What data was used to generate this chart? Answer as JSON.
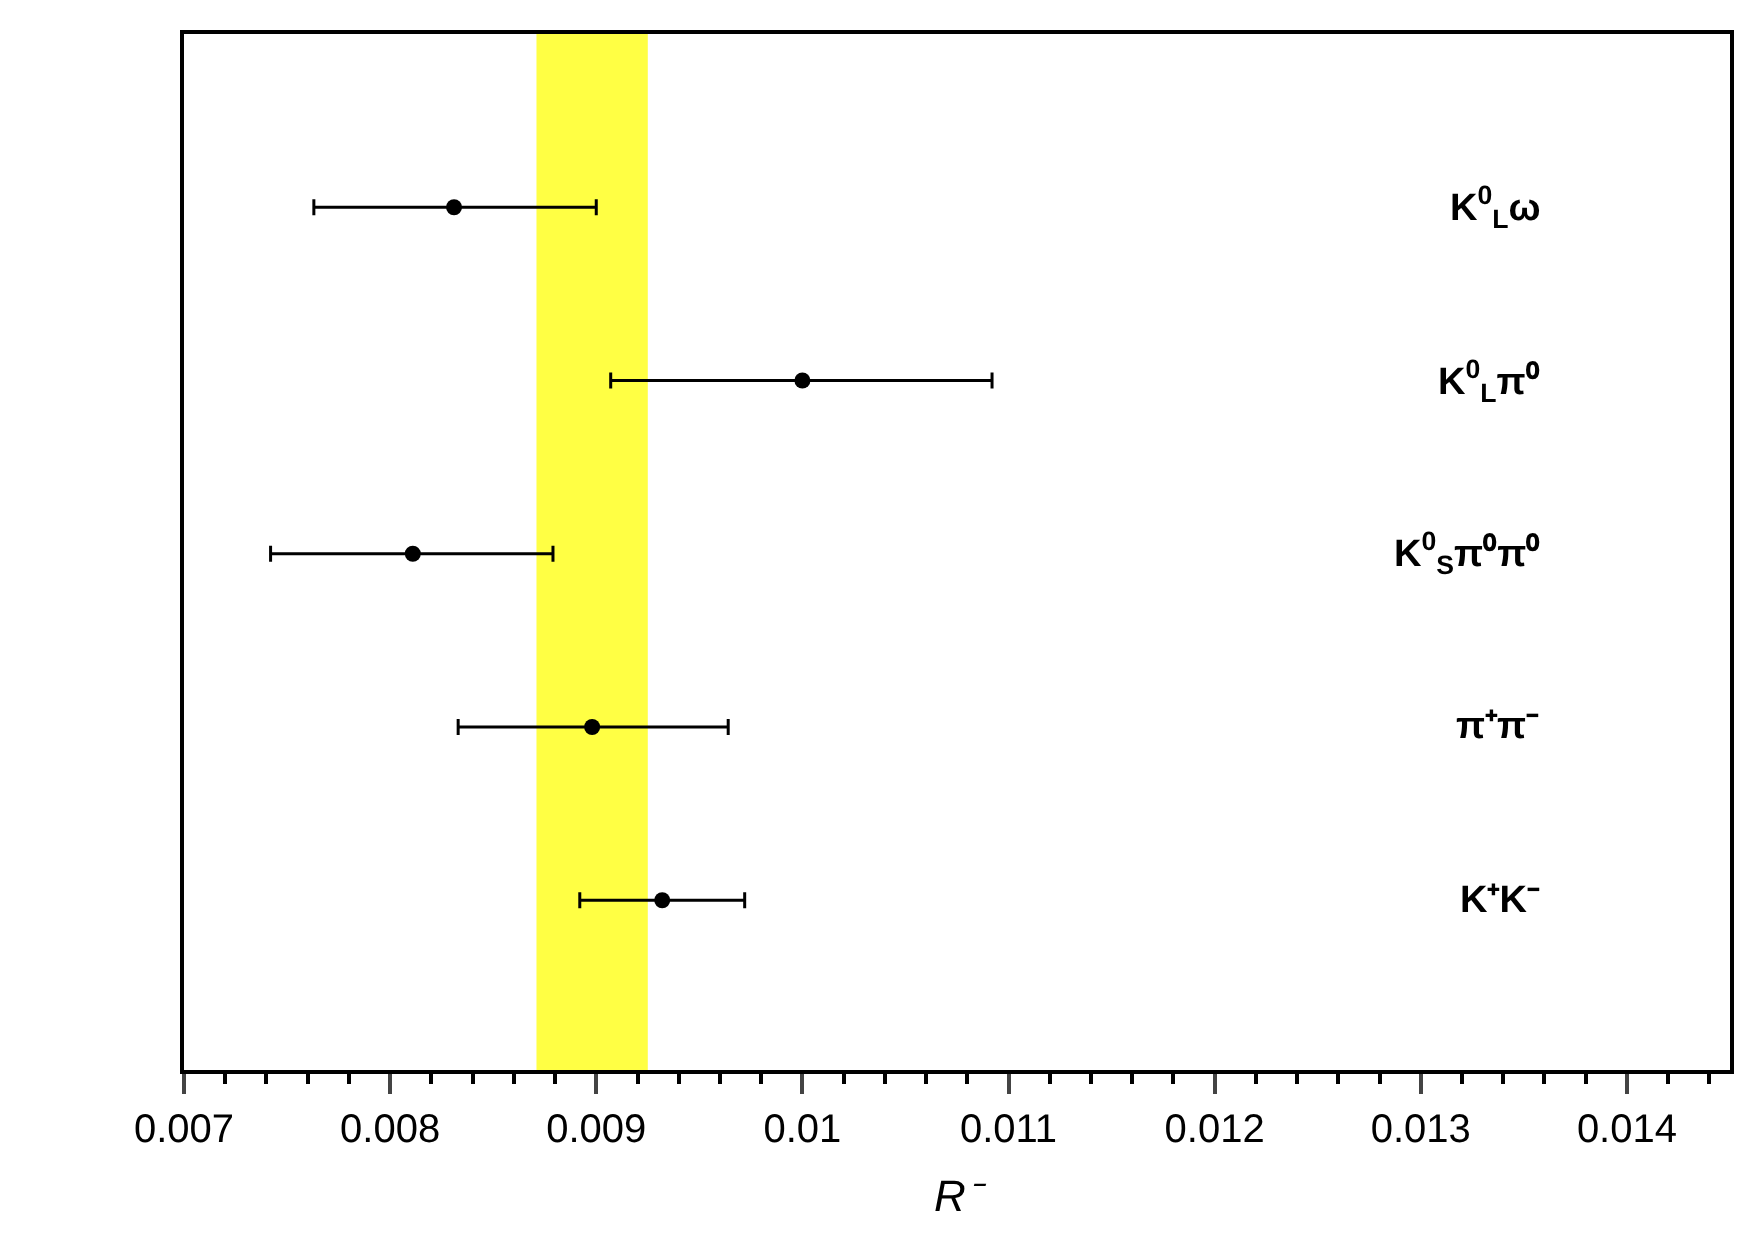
{
  "chart_data": {
    "type": "scatter",
    "orientation": "horizontal",
    "xlabel": "R⁻",
    "categories": [
      "K$^{0}$$_{L}$ω",
      "K$^{0}$$_{L}$π⁰",
      "K$^{0}$$_{S}$π⁰π⁰",
      "π⁺π⁻",
      "K⁺K⁻"
    ],
    "values": [
      0.00831,
      0.01,
      0.00811,
      0.00898,
      0.00932
    ],
    "errors": [
      [
        0.00763,
        0.009
      ],
      [
        0.00907,
        0.01092
      ],
      [
        0.00742,
        0.00879
      ],
      [
        0.00833,
        0.00964
      ],
      [
        0.00892,
        0.00972
      ]
    ],
    "color": "#000000",
    "marker": "circle",
    "xlim": [
      0.007,
      0.0145
    ],
    "xticks": [
      0.007,
      0.008,
      0.009,
      0.01,
      0.011,
      0.012,
      0.013,
      0.014
    ],
    "bands": [
      {
        "axis": "x",
        "from": 0.00871,
        "to": 0.00925,
        "color": "#ffff44"
      }
    ],
    "grid": false,
    "tick_labels": "x"
  }
}
